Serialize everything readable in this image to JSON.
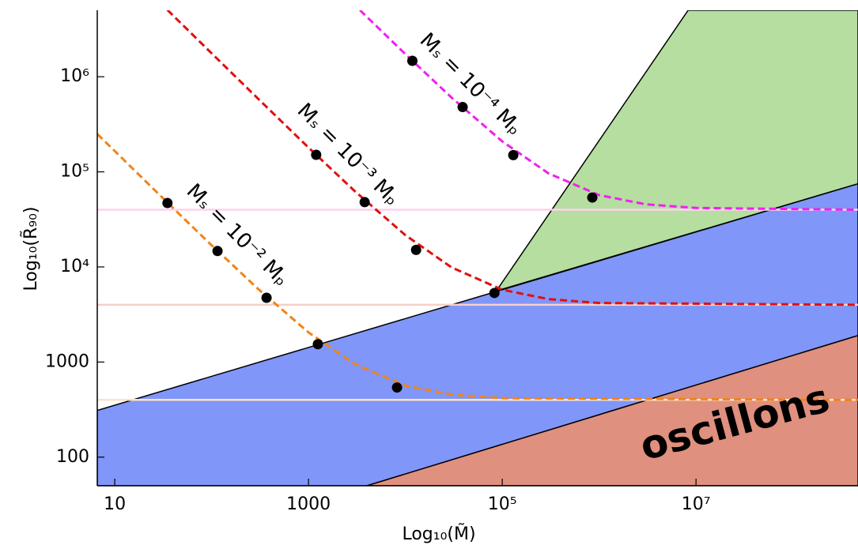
{
  "chart_data": {
    "type": "line",
    "x_label": "Log₁₀(M̃)",
    "y_label": "Log₁₀(R̃₉₀)",
    "log_x": true,
    "log_y": true,
    "xlim": [
      6.6,
      470000000
    ],
    "ylim": [
      50,
      5000000
    ],
    "xticks": [
      10,
      1000,
      {
        "value": 100000,
        "label": "10⁵"
      },
      {
        "value": 10000000,
        "label": "10⁷"
      }
    ],
    "yticks": [
      100,
      1000,
      {
        "value": 10000,
        "label": "10⁴"
      },
      {
        "value": 100000,
        "label": "10⁵"
      },
      {
        "value": 1000000,
        "label": "10⁶"
      }
    ],
    "regions": [
      {
        "color": "#8096f8",
        "x": [
          6.6,
          470000000,
          470000000,
          4000,
          6.6
        ],
        "y": [
          310,
          75000,
          1900,
          50,
          50
        ]
      },
      {
        "color": "#e0907e",
        "x": [
          4000,
          470000000,
          470000000
        ],
        "y": [
          50,
          1900,
          50
        ]
      },
      {
        "color": "#b5dea0",
        "x": [
          87000,
          8300000,
          470000000,
          470000000
        ],
        "y": [
          5600,
          5000000,
          5000000,
          75000
        ]
      }
    ],
    "hlines": [
      {
        "color": "#ffd0ee",
        "value": 40000
      },
      {
        "color": "#f8cfc6",
        "value": 4000
      },
      {
        "color": "#fde2c6",
        "value": 400
      }
    ],
    "series": [
      {
        "name": "Mₛ = 10⁻² Mₚ",
        "color": "#f08418",
        "x": [
          6.6,
          10,
          20,
          50,
          100,
          300,
          1000,
          3000,
          10000,
          30000,
          100000,
          470000000
        ],
        "y": [
          250400,
          165400,
          82900,
          33400,
          16900,
          5900,
          2050,
          950,
          565,
          455,
          417,
          400
        ],
        "points_x": [
          35,
          115,
          369,
          1250,
          8200
        ],
        "points_y": [
          47000,
          14700,
          4740,
          1540,
          540
        ]
      },
      {
        "name": "Mₛ = 10⁻³ Mₚ",
        "color": "#e01010",
        "x": [
          35,
          100,
          300,
          1000,
          3000,
          10000,
          30000,
          100000,
          300000,
          1000000,
          470000000
        ],
        "y": [
          5030000,
          1764000,
          590700,
          180000,
          62700,
          21600,
          9870,
          5760,
          4590,
          4180,
          4000
        ],
        "points_x": [
          1200,
          3800,
          12900,
          83000
        ],
        "points_y": [
          151000,
          48000,
          15100,
          5320
        ]
      },
      {
        "name": "Mₛ = 10⁻⁴ Mₚ",
        "color": "#f020f0",
        "x": [
          3400,
          10000,
          30000,
          100000,
          300000,
          1000000,
          3000000,
          10000000,
          470000000
        ],
        "y": [
          5010000,
          1730000,
          603000,
          209000,
          96300,
          56900,
          45600,
          41700,
          40000
        ],
        "points_x": [
          11800,
          39000,
          130000,
          850000
        ],
        "points_y": [
          1470000,
          480000,
          150000,
          53700
        ]
      }
    ],
    "annotation": "oscillons"
  }
}
